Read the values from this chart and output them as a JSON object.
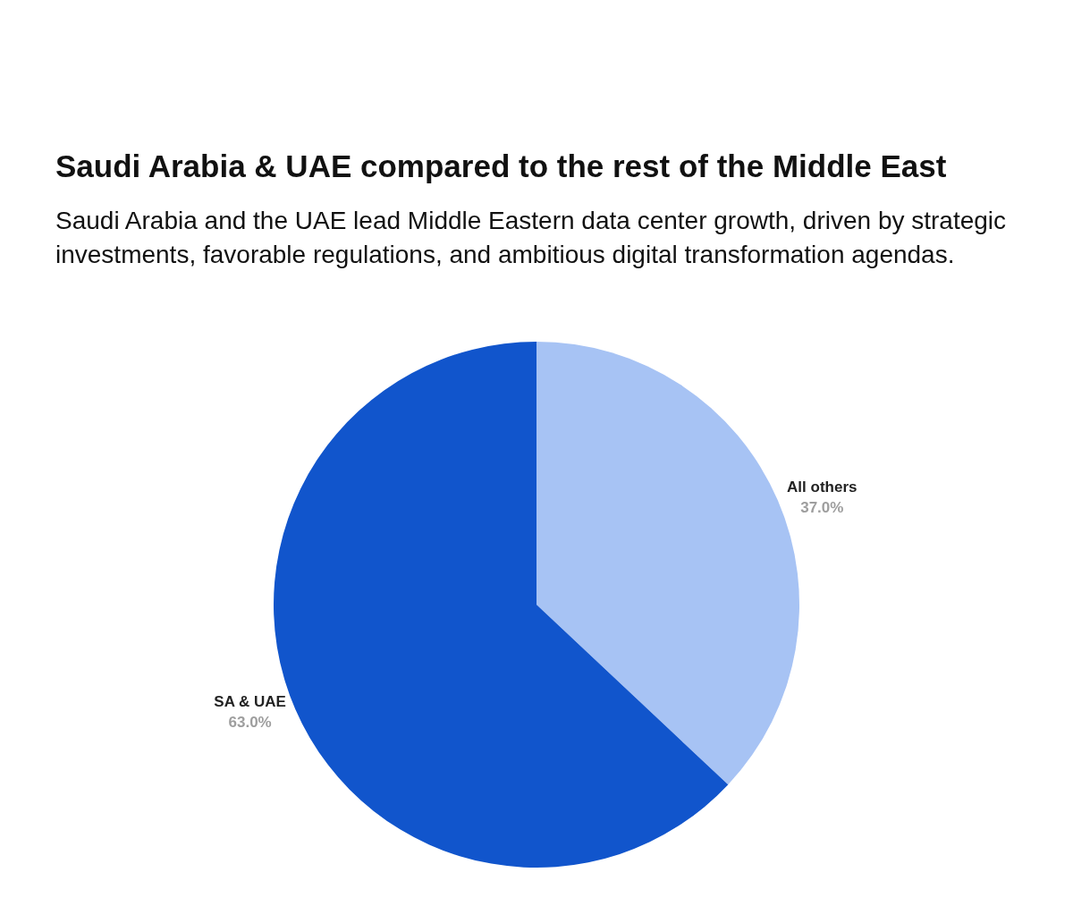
{
  "chart_data": {
    "type": "pie",
    "title": "Saudi Arabia & UAE compared to the rest of the Middle East",
    "subtitle": "Saudi Arabia and the UAE lead Middle Eastern data center growth, driven by strategic investments, favorable regulations, and ambitious digital transformation agendas.",
    "categories": [
      "All others",
      "SA & UAE"
    ],
    "values": [
      37.0,
      63.0
    ],
    "value_labels": [
      "37.0%",
      "63.0%"
    ],
    "colors": [
      "#a7c3f4",
      "#1155cc"
    ],
    "legend": false
  }
}
